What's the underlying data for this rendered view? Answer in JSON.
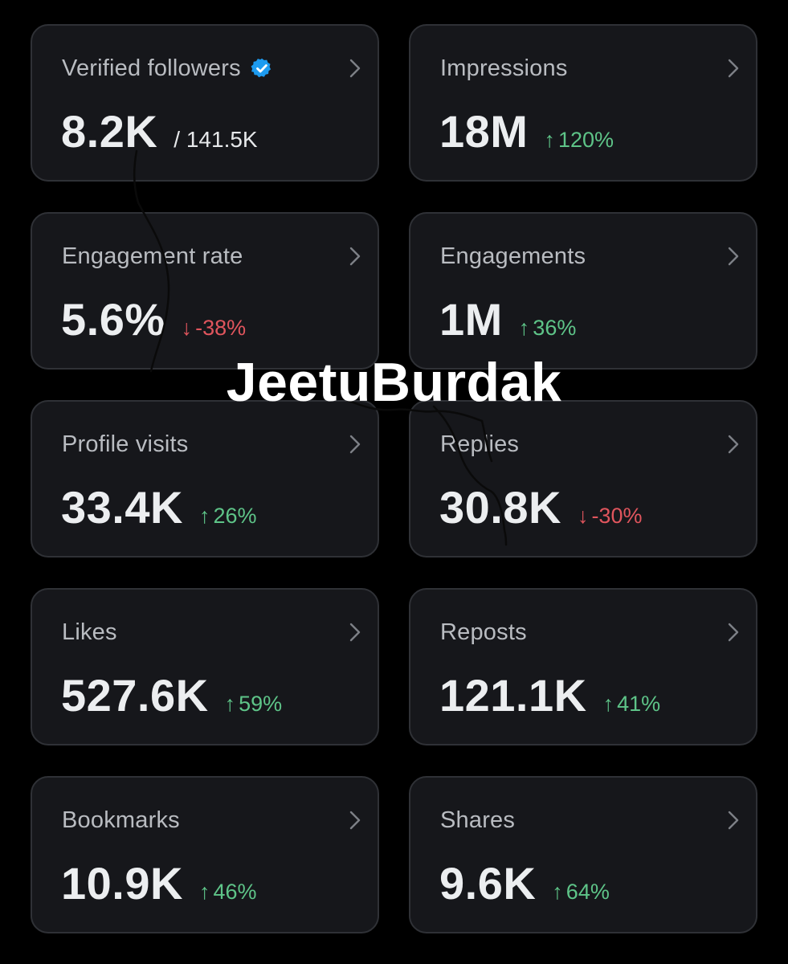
{
  "cards": [
    {
      "title": "Verified followers",
      "value": "8.2K",
      "total": "/ 141.5K",
      "verified_icon": "verified-badge-icon",
      "verified_color": "#1d9bf0"
    },
    {
      "title": "Impressions",
      "value": "18M",
      "change": "120%",
      "direction": "up"
    },
    {
      "title": "Engagement rate",
      "value": "5.6%",
      "change": "-38%",
      "direction": "down"
    },
    {
      "title": "Engagements",
      "value": "1M",
      "change": "36%",
      "direction": "up"
    },
    {
      "title": "Profile visits",
      "value": "33.4K",
      "change": "26%",
      "direction": "up"
    },
    {
      "title": "Replies",
      "value": "30.8K",
      "change": "-30%",
      "direction": "down"
    },
    {
      "title": "Likes",
      "value": "527.6K",
      "change": "59%",
      "direction": "up"
    },
    {
      "title": "Reposts",
      "value": "121.1K",
      "change": "41%",
      "direction": "up"
    },
    {
      "title": "Bookmarks",
      "value": "10.9K",
      "change": "46%",
      "direction": "up"
    },
    {
      "title": "Shares",
      "value": "9.6K",
      "change": "64%",
      "direction": "up"
    }
  ],
  "arrows": {
    "up": "↑",
    "down": "↓"
  },
  "watermark": "JeetuBurdak",
  "colors": {
    "background": "#000000",
    "card": "#16171b",
    "card_border": "#2f3136",
    "positive": "#5ec488",
    "negative": "#e0555d",
    "verified": "#1d9bf0"
  }
}
